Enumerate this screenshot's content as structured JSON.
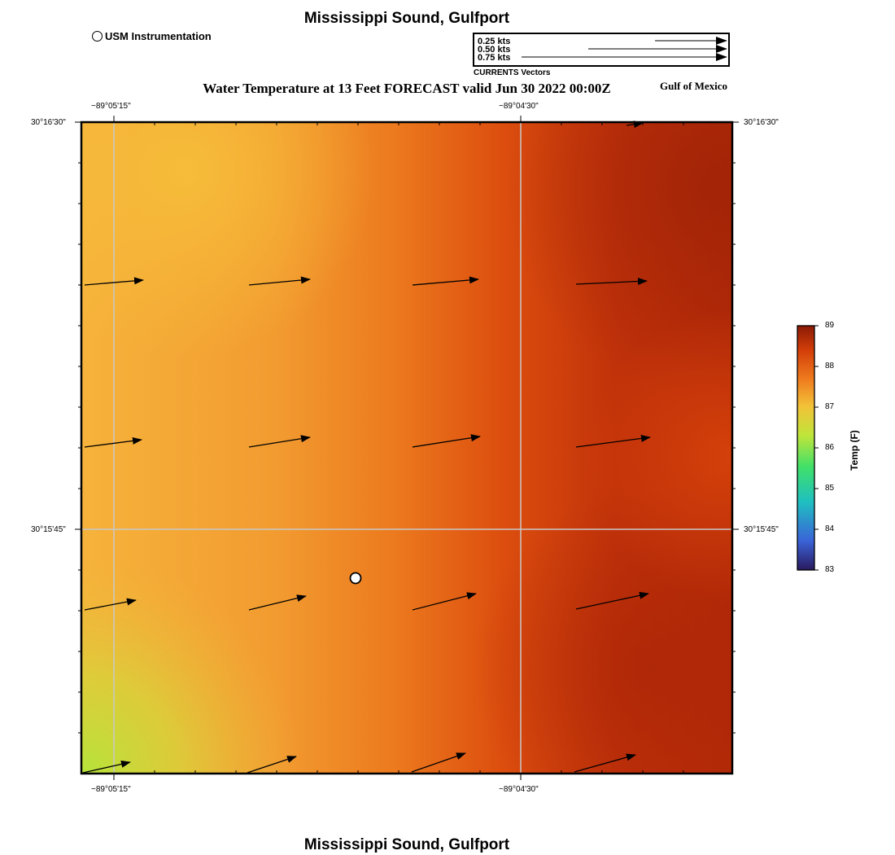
{
  "header": {
    "title": "Mississippi Sound, Gulfport",
    "subtitle": "Water Temperature at 13 Feet FORECAST valid Jun 30 2022 00:00Z",
    "region_label": "Gulf of Mexico"
  },
  "footer": {
    "title": "Mississippi Sound, Gulfport"
  },
  "station_legend": {
    "label": "USM Instrumentation"
  },
  "vector_legend": {
    "caption": "CURRENTS Vectors",
    "entries": [
      "0.25 kts",
      "0.50 kts",
      "0.75 kts"
    ],
    "speeds_kts": [
      0.25,
      0.5,
      0.75
    ]
  },
  "map": {
    "x_ticks": [
      "−89°05'15\"",
      "−89°04'30\""
    ],
    "y_ticks": [
      "30°16'30\"",
      "30°15'45\""
    ],
    "station": {
      "name": "USM Instrumentation",
      "shape": "white circle"
    }
  },
  "colorbar": {
    "title": "Temp (F)",
    "labels": [
      "89",
      "88",
      "87",
      "86",
      "85",
      "84",
      "83"
    ],
    "min": 83,
    "max": 89,
    "stops": [
      "#2a1a5e",
      "#3a63d8",
      "#1fc0c0",
      "#3fe06a",
      "#bfe53a",
      "#f3c238",
      "#ef7c1e",
      "#d33e09",
      "#8a1a06"
    ]
  }
}
